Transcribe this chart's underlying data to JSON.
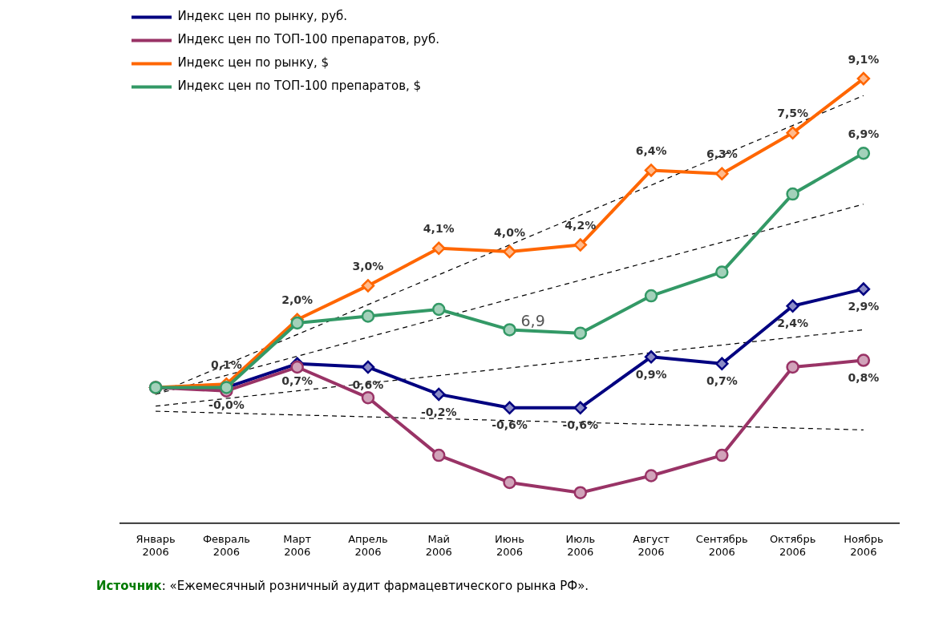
{
  "chart_data": {
    "type": "line",
    "categories": [
      "Январь 2006",
      "Февраль 2006",
      "Март 2006",
      "Апрель 2006",
      "Май 2006",
      "Июнь 2006",
      "Июль 2006",
      "Август 2006",
      "Сентябрь 2006",
      "Октябрь 2006",
      "Ноябрь 2006"
    ],
    "series": [
      {
        "name": "Индекс цен по рынку, руб.",
        "color": "#000080",
        "marker": "diamond",
        "values": [
          0,
          0.0,
          0.7,
          0.6,
          -0.2,
          -0.6,
          -0.6,
          0.9,
          0.7,
          2.4,
          2.9
        ],
        "value_labels": [
          null,
          "-0,0%",
          "0,7%",
          "0,6%",
          "-0,2%",
          "-0,6%",
          "-0,6%",
          "0,9%",
          "0,7%",
          "2,4%",
          "2,9%"
        ]
      },
      {
        "name": "Индекс цен по ТОП-100 препаратов, руб.",
        "color": "#993366",
        "marker": "circle",
        "values": [
          0,
          -0.1,
          0.6,
          -0.3,
          -2.0,
          -2.8,
          -3.1,
          -2.6,
          -2.0,
          0.6,
          0.8
        ],
        "value_labels": [
          null,
          null,
          null,
          null,
          null,
          null,
          null,
          null,
          null,
          null,
          "0,8%"
        ]
      },
      {
        "name": "Индекс цен по рынку, $",
        "color": "#ff6600",
        "marker": "diamond",
        "values": [
          0,
          0.1,
          2.0,
          3.0,
          4.1,
          4.0,
          4.2,
          6.4,
          6.3,
          7.5,
          9.1
        ],
        "value_labels": [
          null,
          "0,1%",
          "2,0%",
          "3,0%",
          "4,1%",
          "4,0%",
          "4,2%",
          "6,4%",
          "6,3%",
          "7,5%",
          "9,1%"
        ]
      },
      {
        "name": "Индекс цен по ТОП-100 препаратов, $",
        "color": "#339966",
        "marker": "circle",
        "values": [
          0,
          0.0,
          1.9,
          2.1,
          2.3,
          1.7,
          1.6,
          2.7,
          3.4,
          5.7,
          6.9
        ],
        "value_labels": [
          null,
          null,
          null,
          null,
          null,
          null,
          null,
          null,
          null,
          null,
          "6,9%"
        ]
      },
      {
        "type": "line",
        "color": "#000000",
        "line_style": "dashed",
        "marker": "none",
        "x": [
          "Январь 2006",
          "Ноябрь 2006"
        ],
        "values": [
          -0.2,
          8.6
        ]
      },
      {
        "type": "line",
        "color": "#000000",
        "line_style": "dashed",
        "marker": "none",
        "x": [
          "Январь 2006",
          "Ноябрь 2006"
        ],
        "values": [
          -0.2,
          5.4
        ]
      },
      {
        "type": "line",
        "color": "#000000",
        "line_style": "dashed",
        "marker": "none",
        "x": [
          "Январь 2006",
          "Ноябрь 2006"
        ],
        "values": [
          -0.55,
          1.7
        ]
      },
      {
        "type": "line",
        "color": "#000000",
        "line_style": "dashed",
        "marker": "none",
        "x": [
          "Январь 2006",
          "Ноябрь 2006"
        ],
        "values": [
          -0.7,
          -1.25
        ]
      }
    ],
    "tick_labels": "x",
    "grid": false,
    "legend": "top left",
    "annotations": [
      {
        "text": "6,9",
        "x": "Июнь 2006",
        "y": 1.7
      },
      "Источник: «Ежемесячный розничный аудит фармацевтического рынка РФ»."
    ]
  }
}
